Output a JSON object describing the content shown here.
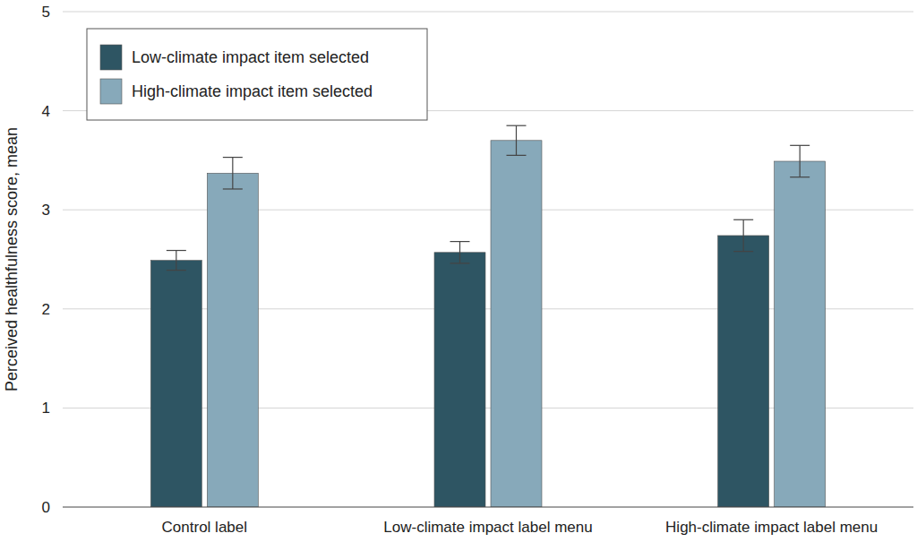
{
  "chart_data": {
    "type": "bar",
    "y_label": "Perceived healthfulness score, mean",
    "categories": [
      "Control label",
      "Low-climate impact label menu",
      "High-climate impact label menu"
    ],
    "series": [
      {
        "name": "Low-climate impact item selected",
        "color": "#2e5563",
        "values": [
          2.49,
          2.57,
          2.74
        ],
        "errors": [
          0.1,
          0.11,
          0.16
        ]
      },
      {
        "name": "High-climate impact item selected",
        "color": "#87a9ba",
        "values": [
          3.37,
          3.7,
          3.49
        ],
        "errors": [
          0.16,
          0.15,
          0.16
        ]
      }
    ],
    "ylim": [
      0,
      5
    ],
    "yticks": [
      0,
      1,
      2,
      3,
      4,
      5
    ],
    "grid": true,
    "legend": "top-left"
  }
}
